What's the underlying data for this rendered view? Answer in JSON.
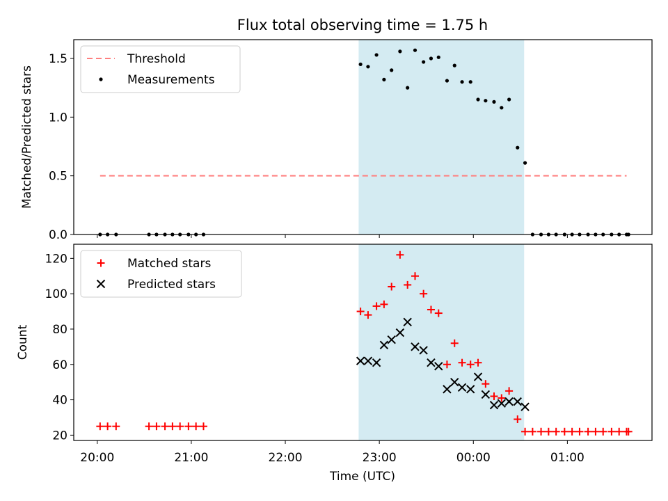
{
  "chart_data": {
    "title": "Flux total observing time = 1.75 h",
    "xlabel": "Time (UTC)",
    "x_unit": "hours since 20:00 UTC",
    "xlim": [
      -0.25,
      5.9
    ],
    "x_ticks": [
      {
        "value": 0,
        "label": "20:00"
      },
      {
        "value": 1,
        "label": "21:00"
      },
      {
        "value": 2,
        "label": "22:00"
      },
      {
        "value": 3,
        "label": "23:00"
      },
      {
        "value": 4,
        "label": "00:00"
      },
      {
        "value": 5,
        "label": "01:00"
      }
    ],
    "shaded_region": {
      "x_start": 2.78,
      "x_end": 4.54,
      "color": "#add8e6"
    },
    "panels": [
      {
        "type": "scatter",
        "ylabel": "Matched/Predicted stars",
        "ylim": [
          0,
          1.66
        ],
        "y_ticks": [
          {
            "value": 0.0,
            "label": "0.0"
          },
          {
            "value": 0.5,
            "label": "0.5"
          },
          {
            "value": 1.0,
            "label": "1.0"
          },
          {
            "value": 1.5,
            "label": "1.5"
          }
        ],
        "legend": [
          "Threshold",
          "Measurements"
        ],
        "legend_position": "top-left",
        "series": [
          {
            "name": "Threshold",
            "style": "dashed-line",
            "color": "#ff7f7f",
            "x": [
              0.03,
              5.63
            ],
            "y": [
              0.5,
              0.5
            ]
          },
          {
            "name": "Measurements",
            "style": "dot",
            "color": "#000000",
            "x": [
              0.03,
              0.11,
              0.2,
              0.55,
              0.63,
              0.72,
              0.8,
              0.88,
              0.97,
              1.05,
              1.13,
              2.8,
              2.88,
              2.97,
              3.05,
              3.13,
              3.22,
              3.3,
              3.38,
              3.47,
              3.55,
              3.63,
              3.72,
              3.8,
              3.88,
              3.97,
              4.05,
              4.13,
              4.22,
              4.3,
              4.38,
              4.47,
              4.55,
              4.63,
              4.72,
              4.8,
              4.88,
              4.97,
              5.05,
              5.13,
              5.22,
              5.3,
              5.38,
              5.47,
              5.55,
              5.63,
              5.65
            ],
            "y": [
              0,
              0,
              0,
              0,
              0,
              0,
              0,
              0,
              0,
              0,
              0,
              1.45,
              1.43,
              1.53,
              1.32,
              1.4,
              1.56,
              1.25,
              1.57,
              1.47,
              1.5,
              1.51,
              1.31,
              1.44,
              1.3,
              1.3,
              1.15,
              1.14,
              1.13,
              1.08,
              1.15,
              0.74,
              0.61,
              0,
              0,
              0,
              0,
              0,
              0,
              0,
              0,
              0,
              0,
              0,
              0,
              0,
              0
            ]
          }
        ]
      },
      {
        "type": "scatter",
        "ylabel": "Count",
        "ylim": [
          17,
          128
        ],
        "y_ticks": [
          {
            "value": 20,
            "label": "20"
          },
          {
            "value": 40,
            "label": "40"
          },
          {
            "value": 60,
            "label": "60"
          },
          {
            "value": 80,
            "label": "80"
          },
          {
            "value": 100,
            "label": "100"
          },
          {
            "value": 120,
            "label": "120"
          }
        ],
        "legend": [
          "Matched stars",
          "Predicted stars"
        ],
        "legend_position": "top-left",
        "series": [
          {
            "name": "Matched stars",
            "style": "plus",
            "color": "#ff0000",
            "x": [
              0.03,
              0.11,
              0.2,
              0.55,
              0.63,
              0.72,
              0.8,
              0.88,
              0.97,
              1.05,
              1.13,
              2.8,
              2.88,
              2.97,
              3.05,
              3.13,
              3.22,
              3.3,
              3.38,
              3.47,
              3.55,
              3.63,
              3.72,
              3.8,
              3.88,
              3.97,
              4.05,
              4.13,
              4.22,
              4.3,
              4.38,
              4.47,
              4.55,
              4.63,
              4.72,
              4.8,
              4.88,
              4.97,
              5.05,
              5.13,
              5.22,
              5.3,
              5.38,
              5.47,
              5.55,
              5.63,
              5.65
            ],
            "y": [
              25,
              25,
              25,
              25,
              25,
              25,
              25,
              25,
              25,
              25,
              25,
              90,
              88,
              93,
              94,
              104,
              122,
              105,
              110,
              100,
              91,
              89,
              60,
              72,
              61,
              60,
              61,
              49,
              42,
              41,
              45,
              29,
              22,
              22,
              22,
              22,
              22,
              22,
              22,
              22,
              22,
              22,
              22,
              22,
              22,
              22,
              22
            ]
          },
          {
            "name": "Predicted stars",
            "style": "x",
            "color": "#000000",
            "x": [
              2.8,
              2.88,
              2.97,
              3.05,
              3.13,
              3.22,
              3.3,
              3.38,
              3.47,
              3.55,
              3.63,
              3.72,
              3.8,
              3.88,
              3.97,
              4.05,
              4.13,
              4.22,
              4.3,
              4.38,
              4.47,
              4.55
            ],
            "y": [
              62,
              62,
              61,
              71,
              74,
              78,
              84,
              70,
              68,
              61,
              59,
              46,
              50,
              47,
              46,
              53,
              43,
              37,
              38,
              39,
              39,
              36
            ]
          }
        ]
      }
    ]
  }
}
